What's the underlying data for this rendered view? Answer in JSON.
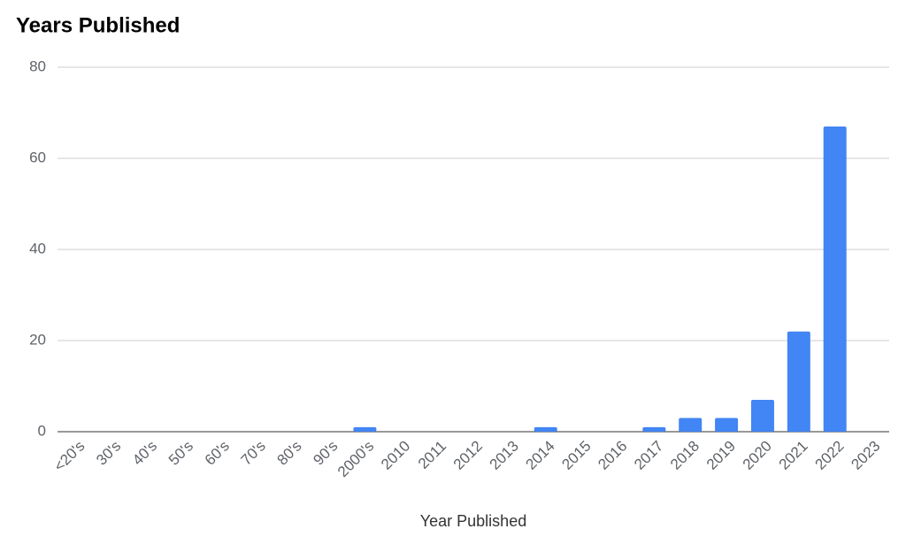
{
  "chart_data": {
    "type": "bar",
    "title": "Years Published",
    "x_label": "Year Published",
    "categories": [
      "<20's",
      "30's",
      "40's",
      "50's",
      "60's",
      "70's",
      "80's",
      "90's",
      "2000's",
      "2010",
      "2011",
      "2012",
      "2013",
      "2014",
      "2015",
      "2016",
      "2017",
      "2018",
      "2019",
      "2020",
      "2021",
      "2022",
      "2023"
    ],
    "values": [
      0,
      0,
      0,
      0,
      0,
      0,
      0,
      0,
      1,
      0,
      0,
      0,
      0,
      1,
      0,
      0,
      1,
      3,
      3,
      7,
      22,
      67,
      0
    ],
    "color": "#4285f4",
    "ylim": [
      0,
      80
    ],
    "yticks": [
      0,
      20,
      40,
      60,
      80
    ],
    "grid": true
  }
}
